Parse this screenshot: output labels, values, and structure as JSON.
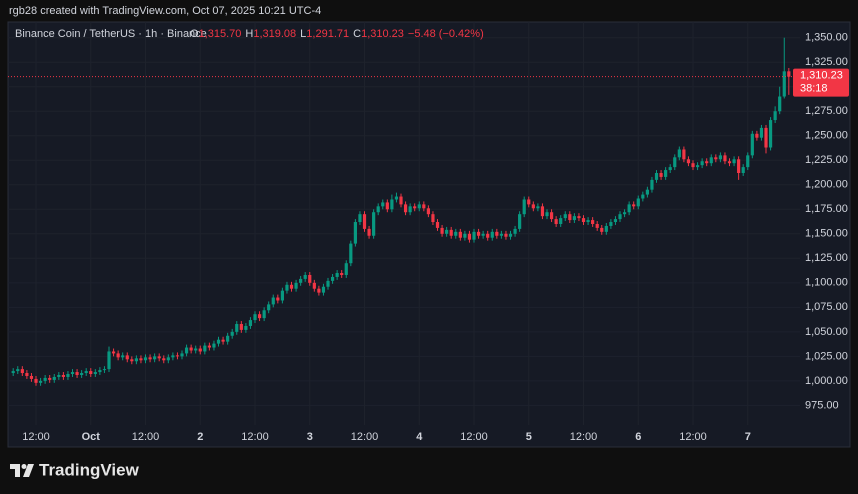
{
  "header": {
    "credit": "rgb28 created with TradingView.com, Oct 07, 2025 10:21 UTC-4"
  },
  "footer": {
    "brand": "TradingView"
  },
  "chart_data": {
    "type": "candlestick",
    "legend": {
      "title": "Binance Coin / TetherUS · 1h · Binance",
      "items": [
        {
          "key": "O",
          "value": "1,315.70"
        },
        {
          "key": "H",
          "value": "1,319.08"
        },
        {
          "key": "L",
          "value": "1,291.71"
        },
        {
          "key": "C",
          "value": "1,310.23"
        }
      ],
      "change": "−5.48 (−0.42%)"
    },
    "price_label": "1,310.23",
    "countdown": "38:18",
    "up_color": "#089981",
    "down_color": "#f23645",
    "grid": true,
    "ylim": [
      955,
      1366
    ],
    "yticks": [
      {
        "value": 975,
        "label": "975.00"
      },
      {
        "value": 1000,
        "label": "1,000.00"
      },
      {
        "value": 1025,
        "label": "1,025.00"
      },
      {
        "value": 1050,
        "label": "1,050.00"
      },
      {
        "value": 1075,
        "label": "1,075.00"
      },
      {
        "value": 1100,
        "label": "1,100.00"
      },
      {
        "value": 1125,
        "label": "1,125.00"
      },
      {
        "value": 1150,
        "label": "1,150.00"
      },
      {
        "value": 1175,
        "label": "1,175.00"
      },
      {
        "value": 1200,
        "label": "1,200.00"
      },
      {
        "value": 1225,
        "label": "1,225.00"
      },
      {
        "value": 1250,
        "label": "1,250.00"
      },
      {
        "value": 1275,
        "label": "1,275.00"
      },
      {
        "value": 1300,
        "label": "1,300.00"
      },
      {
        "value": 1325,
        "label": "1,325.00"
      },
      {
        "value": 1350,
        "label": "1,350.00"
      }
    ],
    "categories": [
      null,
      null,
      null,
      null,
      null,
      "12:00",
      null,
      null,
      null,
      null,
      null,
      null,
      null,
      null,
      null,
      null,
      null,
      "Oct",
      null,
      null,
      null,
      null,
      null,
      null,
      null,
      null,
      null,
      null,
      null,
      "12:00",
      null,
      null,
      null,
      null,
      null,
      null,
      null,
      null,
      null,
      null,
      null,
      "2",
      null,
      null,
      null,
      null,
      null,
      null,
      null,
      null,
      null,
      null,
      null,
      "12:00",
      null,
      null,
      null,
      null,
      null,
      null,
      null,
      null,
      null,
      null,
      null,
      "3",
      null,
      null,
      null,
      null,
      null,
      null,
      null,
      null,
      null,
      null,
      null,
      "12:00",
      null,
      null,
      null,
      null,
      null,
      null,
      null,
      null,
      null,
      null,
      null,
      "4",
      null,
      null,
      null,
      null,
      null,
      null,
      null,
      null,
      null,
      null,
      null,
      "12:00",
      null,
      null,
      null,
      null,
      null,
      null,
      null,
      null,
      null,
      null,
      null,
      "5",
      null,
      null,
      null,
      null,
      null,
      null,
      null,
      null,
      null,
      null,
      null,
      "12:00",
      null,
      null,
      null,
      null,
      null,
      null,
      null,
      null,
      null,
      null,
      null,
      "6",
      null,
      null,
      null,
      null,
      null,
      null,
      null,
      null,
      null,
      null,
      null,
      "12:00",
      null,
      null,
      null,
      null,
      null,
      null,
      null,
      null,
      null,
      null,
      null,
      "7",
      null,
      null,
      null,
      null,
      null,
      null,
      null,
      null,
      null
    ],
    "open": [
      1008,
      1010,
      1012,
      1008,
      1005,
      1002,
      998,
      1000,
      1003,
      1001,
      1004,
      1006,
      1004,
      1007,
      1009,
      1006,
      1008,
      1010,
      1007,
      1009,
      1011,
      1012,
      1030,
      1028,
      1024,
      1026,
      1022,
      1020,
      1023,
      1021,
      1024,
      1022,
      1025,
      1023,
      1021,
      1024,
      1026,
      1025,
      1028,
      1034,
      1031,
      1033,
      1030,
      1036,
      1034,
      1038,
      1042,
      1040,
      1046,
      1050,
      1058,
      1052,
      1056,
      1062,
      1068,
      1064,
      1072,
      1078,
      1085,
      1082,
      1092,
      1098,
      1094,
      1100,
      1104,
      1108,
      1100,
      1094,
      1090,
      1096,
      1102,
      1106,
      1110,
      1108,
      1120,
      1140,
      1162,
      1170,
      1155,
      1148,
      1172,
      1178,
      1182,
      1175,
      1185,
      1188,
      1180,
      1172,
      1178,
      1176,
      1180,
      1176,
      1170,
      1162,
      1156,
      1150,
      1154,
      1148,
      1152,
      1146,
      1150,
      1144,
      1152,
      1148,
      1150,
      1146,
      1152,
      1148,
      1150,
      1147,
      1150,
      1155,
      1170,
      1185,
      1180,
      1176,
      1178,
      1168,
      1172,
      1165,
      1160,
      1166,
      1170,
      1164,
      1168,
      1166,
      1162,
      1164,
      1160,
      1156,
      1152,
      1158,
      1162,
      1165,
      1170,
      1172,
      1180,
      1178,
      1186,
      1190,
      1195,
      1205,
      1212,
      1208,
      1215,
      1218,
      1228,
      1236,
      1226,
      1222,
      1218,
      1220,
      1224,
      1222,
      1228,
      1226,
      1230,
      1224,
      1222,
      1226,
      1212,
      1218,
      1230,
      1252,
      1248,
      1258,
      1238,
      1266,
      1275,
      1290,
      1315.7
    ],
    "high": [
      1013,
      1015,
      1015,
      1011,
      1008,
      1005,
      1003,
      1006,
      1006,
      1007,
      1009,
      1009,
      1010,
      1012,
      1012,
      1011,
      1013,
      1013,
      1012,
      1014,
      1015,
      1035,
      1033,
      1031,
      1029,
      1029,
      1025,
      1026,
      1026,
      1027,
      1027,
      1028,
      1028,
      1026,
      1027,
      1029,
      1029,
      1031,
      1037,
      1037,
      1036,
      1036,
      1039,
      1039,
      1041,
      1045,
      1045,
      1049,
      1053,
      1061,
      1061,
      1059,
      1065,
      1071,
      1071,
      1075,
      1081,
      1088,
      1088,
      1095,
      1101,
      1101,
      1103,
      1107,
      1111,
      1111,
      1103,
      1097,
      1099,
      1105,
      1109,
      1113,
      1113,
      1123,
      1143,
      1165,
      1173,
      1173,
      1158,
      1175,
      1181,
      1185,
      1185,
      1190,
      1192,
      1191,
      1183,
      1181,
      1181,
      1183,
      1183,
      1179,
      1173,
      1165,
      1159,
      1157,
      1157,
      1155,
      1155,
      1153,
      1153,
      1155,
      1155,
      1153,
      1153,
      1155,
      1155,
      1153,
      1153,
      1153,
      1158,
      1173,
      1188,
      1188,
      1183,
      1181,
      1181,
      1175,
      1175,
      1168,
      1169,
      1173,
      1173,
      1171,
      1171,
      1169,
      1167,
      1167,
      1163,
      1159,
      1161,
      1165,
      1168,
      1173,
      1175,
      1183,
      1183,
      1189,
      1193,
      1198,
      1208,
      1215,
      1215,
      1218,
      1221,
      1231,
      1239,
      1239,
      1229,
      1225,
      1223,
      1227,
      1227,
      1231,
      1231,
      1233,
      1233,
      1227,
      1229,
      1229,
      1221,
      1233,
      1255,
      1255,
      1261,
      1261,
      1269,
      1280,
      1300,
      1350,
      1319.08
    ],
    "low": [
      1005,
      1007,
      1005,
      1002,
      999,
      995,
      995,
      997,
      998,
      998,
      1001,
      1001,
      1001,
      1004,
      1003,
      1003,
      1005,
      1004,
      1004,
      1006,
      1008,
      1009,
      1025,
      1021,
      1021,
      1019,
      1017,
      1017,
      1018,
      1018,
      1019,
      1019,
      1020,
      1018,
      1018,
      1021,
      1022,
      1022,
      1025,
      1028,
      1028,
      1027,
      1027,
      1031,
      1031,
      1035,
      1037,
      1037,
      1043,
      1047,
      1049,
      1049,
      1053,
      1059,
      1061,
      1061,
      1069,
      1075,
      1079,
      1079,
      1089,
      1091,
      1091,
      1097,
      1101,
      1097,
      1091,
      1087,
      1087,
      1093,
      1099,
      1103,
      1105,
      1105,
      1117,
      1137,
      1159,
      1152,
      1145,
      1145,
      1169,
      1175,
      1172,
      1172,
      1182,
      1177,
      1169,
      1169,
      1173,
      1173,
      1173,
      1167,
      1159,
      1153,
      1147,
      1147,
      1145,
      1145,
      1143,
      1143,
      1141,
      1141,
      1145,
      1145,
      1143,
      1143,
      1145,
      1145,
      1144,
      1144,
      1147,
      1152,
      1167,
      1177,
      1173,
      1173,
      1165,
      1165,
      1162,
      1157,
      1157,
      1163,
      1161,
      1161,
      1163,
      1159,
      1159,
      1157,
      1153,
      1149,
      1149,
      1155,
      1159,
      1162,
      1167,
      1169,
      1175,
      1175,
      1183,
      1187,
      1192,
      1202,
      1205,
      1205,
      1212,
      1215,
      1225,
      1223,
      1219,
      1215,
      1215,
      1217,
      1219,
      1219,
      1223,
      1223,
      1221,
      1219,
      1219,
      1205,
      1209,
      1215,
      1227,
      1245,
      1245,
      1232,
      1235,
      1263,
      1272,
      1288,
      1291.71
    ],
    "close": [
      1010,
      1012,
      1008,
      1005,
      1002,
      998,
      1000,
      1003,
      1001,
      1004,
      1006,
      1004,
      1007,
      1009,
      1006,
      1008,
      1010,
      1007,
      1009,
      1011,
      1012,
      1030,
      1028,
      1024,
      1026,
      1022,
      1020,
      1023,
      1021,
      1024,
      1022,
      1025,
      1023,
      1021,
      1024,
      1026,
      1025,
      1028,
      1034,
      1031,
      1033,
      1030,
      1036,
      1034,
      1038,
      1042,
      1040,
      1046,
      1050,
      1058,
      1052,
      1056,
      1062,
      1068,
      1064,
      1072,
      1078,
      1085,
      1082,
      1092,
      1098,
      1094,
      1100,
      1104,
      1108,
      1100,
      1094,
      1090,
      1096,
      1102,
      1106,
      1110,
      1108,
      1120,
      1140,
      1162,
      1170,
      1155,
      1148,
      1172,
      1178,
      1182,
      1175,
      1185,
      1188,
      1180,
      1172,
      1178,
      1176,
      1180,
      1176,
      1170,
      1162,
      1156,
      1150,
      1154,
      1148,
      1152,
      1146,
      1150,
      1144,
      1152,
      1148,
      1150,
      1146,
      1152,
      1148,
      1150,
      1147,
      1150,
      1155,
      1170,
      1185,
      1180,
      1176,
      1178,
      1168,
      1172,
      1165,
      1160,
      1166,
      1170,
      1164,
      1168,
      1166,
      1162,
      1164,
      1160,
      1156,
      1152,
      1158,
      1162,
      1165,
      1170,
      1172,
      1180,
      1178,
      1186,
      1190,
      1195,
      1205,
      1212,
      1208,
      1215,
      1218,
      1228,
      1236,
      1226,
      1222,
      1218,
      1220,
      1224,
      1222,
      1228,
      1226,
      1230,
      1224,
      1222,
      1226,
      1212,
      1218,
      1230,
      1252,
      1248,
      1258,
      1238,
      1266,
      1275,
      1290,
      1315.7,
      1310.23
    ]
  }
}
